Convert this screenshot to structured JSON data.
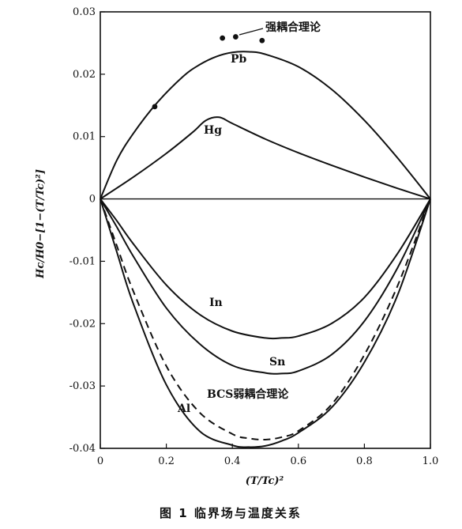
{
  "chart_data": {
    "type": "line",
    "xlabel": "(T/Tc)²",
    "ylabel": "Hc/H0−[1−(T/Tc)²]",
    "xlim": [
      0,
      1.0
    ],
    "ylim": [
      -0.04,
      0.03
    ],
    "x_ticks": [
      "0",
      "0.2",
      "0.4",
      "0.6",
      "0.8",
      "1.0"
    ],
    "y_ticks": [
      "0.03",
      "0.02",
      "0.01",
      "0",
      "-0.01",
      "-0.02",
      "-0.03",
      "-0.04"
    ],
    "x_tick_values": [
      0,
      0.2,
      0.4,
      0.6,
      0.8,
      1.0
    ],
    "y_tick_values": [
      0.03,
      0.02,
      0.01,
      0,
      -0.01,
      -0.02,
      -0.03,
      -0.04
    ],
    "series": [
      {
        "name": "Pb",
        "style": "solid",
        "x": [
          0,
          0.05,
          0.1,
          0.17,
          0.25,
          0.3,
          0.35,
          0.4,
          0.45,
          0.5,
          0.6,
          0.7,
          0.8,
          0.9,
          1.0
        ],
        "y": [
          0,
          0.0062,
          0.0105,
          0.0153,
          0.0196,
          0.0215,
          0.0228,
          0.0235,
          0.0236,
          0.0232,
          0.0212,
          0.0176,
          0.0126,
          0.0066,
          0
        ]
      },
      {
        "name": "Hg",
        "style": "solid",
        "x": [
          0,
          0.1,
          0.2,
          0.28,
          0.32,
          0.36,
          0.4,
          0.5,
          0.6,
          0.7,
          0.8,
          0.9,
          1.0
        ],
        "y": [
          0,
          0.0035,
          0.0073,
          0.0107,
          0.0126,
          0.0131,
          0.0121,
          0.0096,
          0.0074,
          0.0054,
          0.0035,
          0.0017,
          0
        ]
      },
      {
        "name": "In",
        "style": "solid",
        "x": [
          0,
          0.05,
          0.1,
          0.2,
          0.3,
          0.4,
          0.5,
          0.55,
          0.6,
          0.7,
          0.8,
          0.9,
          1.0
        ],
        "y": [
          0,
          -0.0035,
          -0.0072,
          -0.0138,
          -0.0185,
          -0.0212,
          -0.0223,
          -0.0223,
          -0.022,
          -0.02,
          -0.0158,
          -0.0088,
          0
        ]
      },
      {
        "name": "Sn",
        "style": "solid",
        "x": [
          0,
          0.05,
          0.1,
          0.2,
          0.3,
          0.4,
          0.5,
          0.55,
          0.6,
          0.7,
          0.8,
          0.9,
          1.0
        ],
        "y": [
          0,
          -0.0045,
          -0.0092,
          -0.0175,
          -0.0232,
          -0.0267,
          -0.0279,
          -0.028,
          -0.0276,
          -0.025,
          -0.0196,
          -0.0111,
          0
        ]
      },
      {
        "name": "BCS弱耦合理论",
        "style": "dashed",
        "x": [
          0,
          0.05,
          0.1,
          0.2,
          0.3,
          0.4,
          0.45,
          0.5,
          0.55,
          0.6,
          0.7,
          0.8,
          0.9,
          1.0
        ],
        "y": [
          0,
          -0.0075,
          -0.0148,
          -0.0268,
          -0.0342,
          -0.0377,
          -0.0384,
          -0.0386,
          -0.0382,
          -0.0372,
          -0.033,
          -0.025,
          -0.014,
          0
        ]
      },
      {
        "name": "Al",
        "style": "solid",
        "x": [
          0,
          0.05,
          0.1,
          0.2,
          0.3,
          0.4,
          0.45,
          0.5,
          0.55,
          0.6,
          0.7,
          0.8,
          0.9,
          1.0
        ],
        "y": [
          0,
          -0.0085,
          -0.0168,
          -0.0298,
          -0.0372,
          -0.0395,
          -0.0398,
          -0.0396,
          -0.0388,
          -0.0375,
          -0.0335,
          -0.0262,
          -0.0155,
          0
        ]
      }
    ],
    "points": [
      {
        "x": 0.165,
        "y": 0.0148
      },
      {
        "x": 0.37,
        "y": 0.0258
      },
      {
        "x": 0.41,
        "y": 0.026
      },
      {
        "x": 0.49,
        "y": 0.0254
      }
    ],
    "annotation": "强耦合理论",
    "caption": "图 1   临界场与温度关系"
  }
}
